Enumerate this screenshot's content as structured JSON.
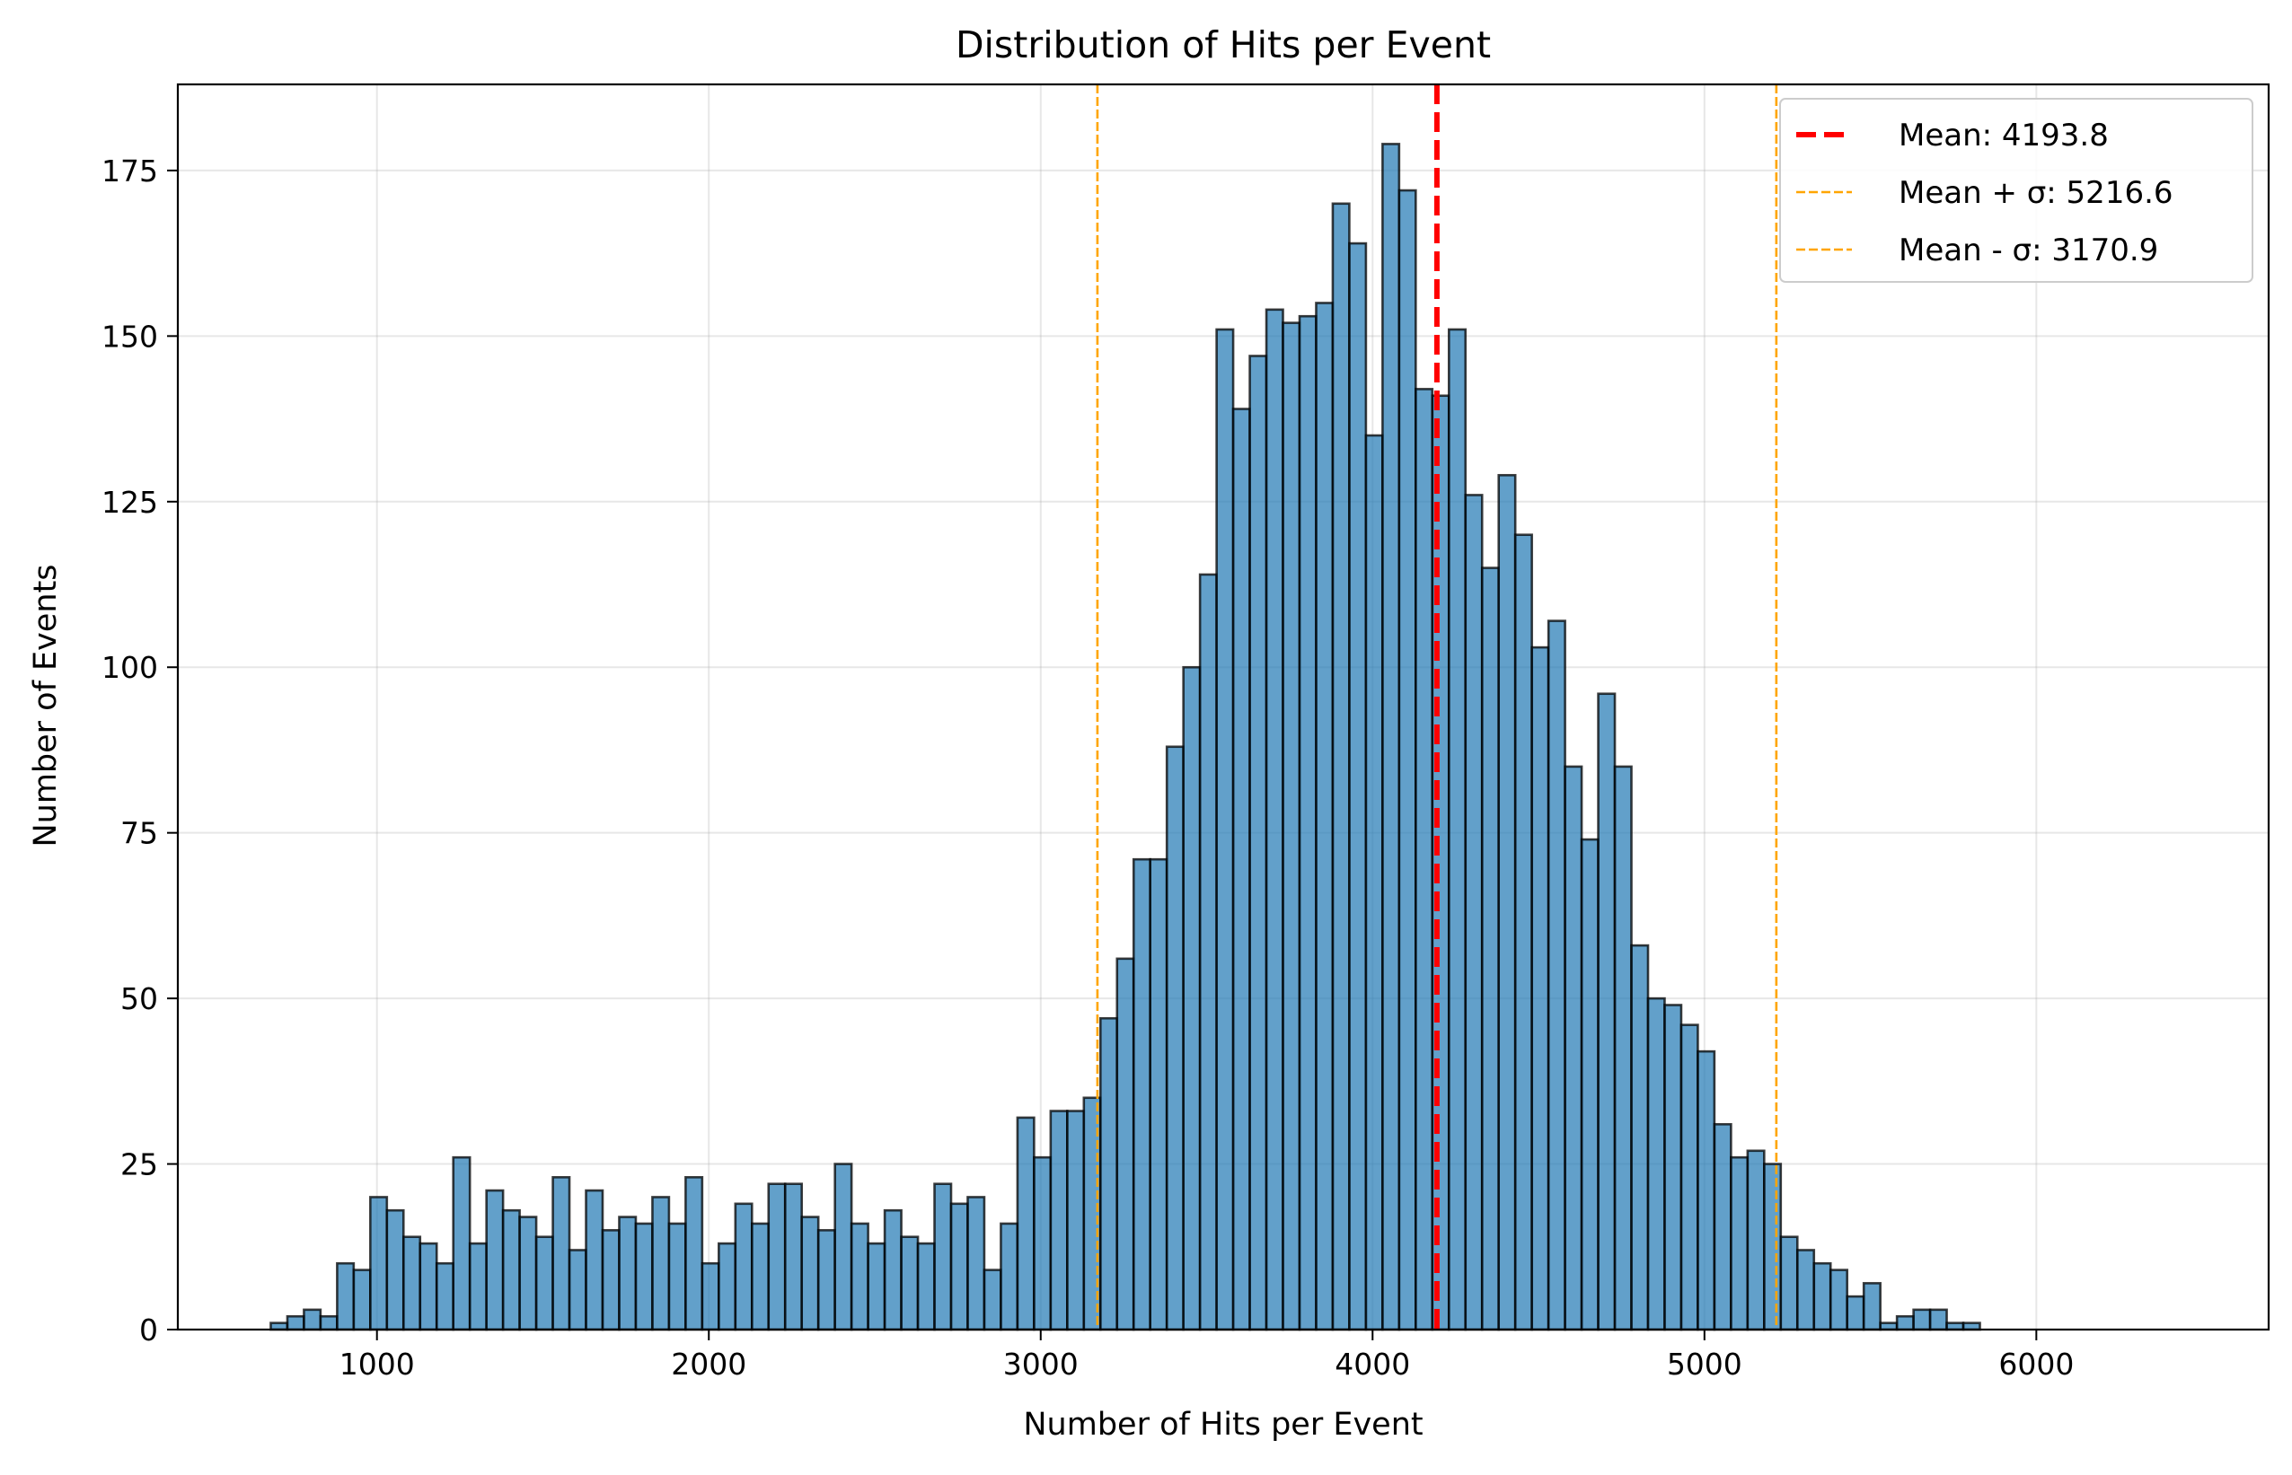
{
  "chart_data": {
    "type": "bar",
    "title": "Distribution of Hits per Event",
    "xlabel": "Number of Hits per Event",
    "ylabel": "Number of Events",
    "xlim": [
      400,
      6700
    ],
    "ylim": [
      0,
      188
    ],
    "x_ticks": [
      1000,
      2000,
      3000,
      4000,
      5000,
      6000
    ],
    "y_ticks": [
      0,
      25,
      50,
      75,
      100,
      125,
      150,
      175
    ],
    "grid": true,
    "legend_position": "top-right",
    "bin_start": 680,
    "bin_width": 50,
    "values": [
      1,
      2,
      3,
      2,
      10,
      9,
      20,
      18,
      14,
      13,
      10,
      26,
      13,
      21,
      18,
      17,
      14,
      23,
      12,
      21,
      15,
      17,
      16,
      20,
      16,
      23,
      10,
      13,
      19,
      16,
      22,
      22,
      17,
      15,
      25,
      16,
      13,
      18,
      14,
      13,
      22,
      19,
      20,
      9,
      16,
      32,
      26,
      33,
      33,
      35,
      47,
      56,
      71,
      71,
      88,
      100,
      114,
      151,
      139,
      147,
      154,
      152,
      153,
      155,
      170,
      164,
      135,
      179,
      172,
      142,
      141,
      151,
      126,
      115,
      129,
      120,
      103,
      107,
      85,
      74,
      96,
      85,
      58,
      50,
      49,
      46,
      42,
      31,
      26,
      27,
      25,
      14,
      12,
      10,
      9,
      5,
      7,
      1,
      2,
      3,
      3,
      1,
      1
    ],
    "bar_color": "#1f77b4",
    "reference_lines": [
      {
        "label": "Mean: 4193.8",
        "x": 4193.8,
        "color": "#ff0000",
        "style": "thick-dashed"
      },
      {
        "label": "Mean + σ: 5216.6",
        "x": 5216.6,
        "color": "#ffa500",
        "style": "thin-dashed"
      },
      {
        "label": "Mean - σ: 3170.9",
        "x": 3170.9,
        "color": "#ffa500",
        "style": "thin-dashed"
      }
    ]
  }
}
